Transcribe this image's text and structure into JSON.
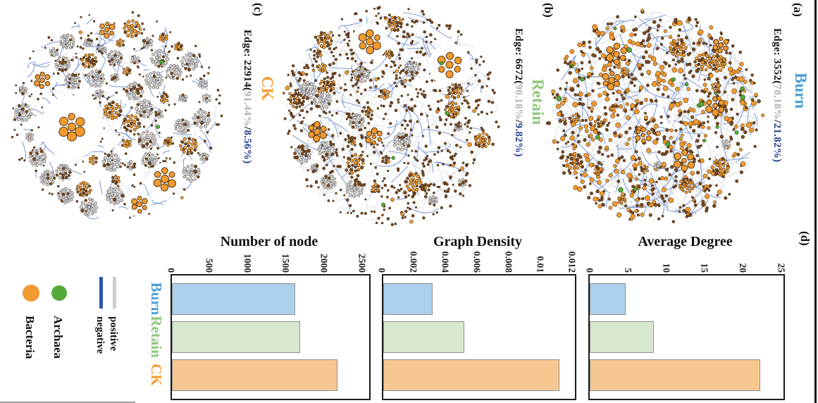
{
  "figure": {
    "panels": [
      {
        "id": "a",
        "label": "(a)",
        "title": "Burn",
        "edge_prefix": "Edge: 3552(",
        "positive_pct": "78.18%",
        "separator": "/",
        "negative_pct": "21.82%)"
      },
      {
        "id": "b",
        "label": "(b)",
        "title": "Retain",
        "edge_prefix": "Edge: 6672(",
        "positive_pct": "90.18%",
        "separator": "/",
        "negative_pct": "9.82%)"
      },
      {
        "id": "c",
        "label": "(c)",
        "title": "CK",
        "edge_prefix": "Edge: 22914(",
        "positive_pct": "91.44%",
        "separator": "/",
        "negative_pct": "8.56%)"
      }
    ],
    "panel_d_label": "(d)",
    "legend": {
      "items": [
        {
          "label": "Bacteria",
          "swatch": "circle",
          "color": "#f09a2f"
        },
        {
          "label": "Archaea",
          "swatch": "circle",
          "color": "#55a93b"
        },
        {
          "label": "positive",
          "swatch": "line",
          "color": "#c9cdd2"
        },
        {
          "label": "negative",
          "swatch": "line",
          "color": "#2f55b0"
        }
      ]
    },
    "row_labels": [
      {
        "label": "Burn",
        "color": "#4a9fd8"
      },
      {
        "label": "Retain",
        "color": "#8fc87a"
      },
      {
        "label": "CK",
        "color": "#f49f37"
      }
    ],
    "chart_data": [
      {
        "type": "bar",
        "title": "Number of node",
        "orientation": "horizontal",
        "legend_position": "left",
        "grid": false,
        "categories": [
          "Burn",
          "Retain",
          "CK"
        ],
        "values": [
          1600,
          1660,
          2150
        ],
        "ticks": [
          0,
          500,
          1000,
          1500,
          2000,
          2500
        ],
        "tick_labels": [
          "0",
          "500",
          "1000",
          "1500",
          "2000",
          "2500"
        ],
        "xlim": [
          0,
          2570
        ]
      },
      {
        "type": "bar",
        "title": "Graph Density",
        "orientation": "horizontal",
        "legend_position": "left",
        "grid": false,
        "categories": [
          "Burn",
          "Retain",
          "CK"
        ],
        "values": [
          0.003,
          0.005,
          0.011
        ],
        "ticks": [
          0,
          0.002,
          0.004,
          0.006,
          0.008,
          0.01,
          0.012
        ],
        "tick_labels": [
          "0",
          "0.002",
          "0.004",
          "0.006",
          "0.008",
          "0.01",
          "0.012"
        ],
        "xlim": [
          0,
          0.01205
        ]
      },
      {
        "type": "bar",
        "title": "Average Degree",
        "orientation": "horizontal",
        "legend_position": "left",
        "grid": false,
        "categories": [
          "Burn",
          "Retain",
          "CK"
        ],
        "values": [
          4.5,
          8.2,
          22.1
        ],
        "ticks": [
          0,
          5,
          10,
          15,
          20,
          25
        ],
        "tick_labels": [
          "0",
          "5",
          "10",
          "15",
          "20",
          "25"
        ],
        "xlim": [
          0,
          25
        ]
      }
    ]
  },
  "colors": {
    "burn": "#4a9fd8",
    "retain": "#8fc87a",
    "ck": "#f49f37",
    "gray_pct": "#b2b2b2",
    "navy_pct": "#25408f",
    "text_black": "#111111",
    "bar_fills": [
      "#abd0ec",
      "#d8e8d0",
      "#f6c791"
    ],
    "bar_border": "#8f8f8f",
    "bacteria": "#f09a2f",
    "archaea": "#55a93b",
    "positive_edge": "#c9cdd2",
    "negative_edge": "#2f55b0",
    "edge_gray_draw": "#d9dde2",
    "edge_blue_draw": "#6787cc",
    "node_gray": "#c9ced8",
    "node_brown": "#7b4a20",
    "node_stroke": "#2b1a08"
  }
}
